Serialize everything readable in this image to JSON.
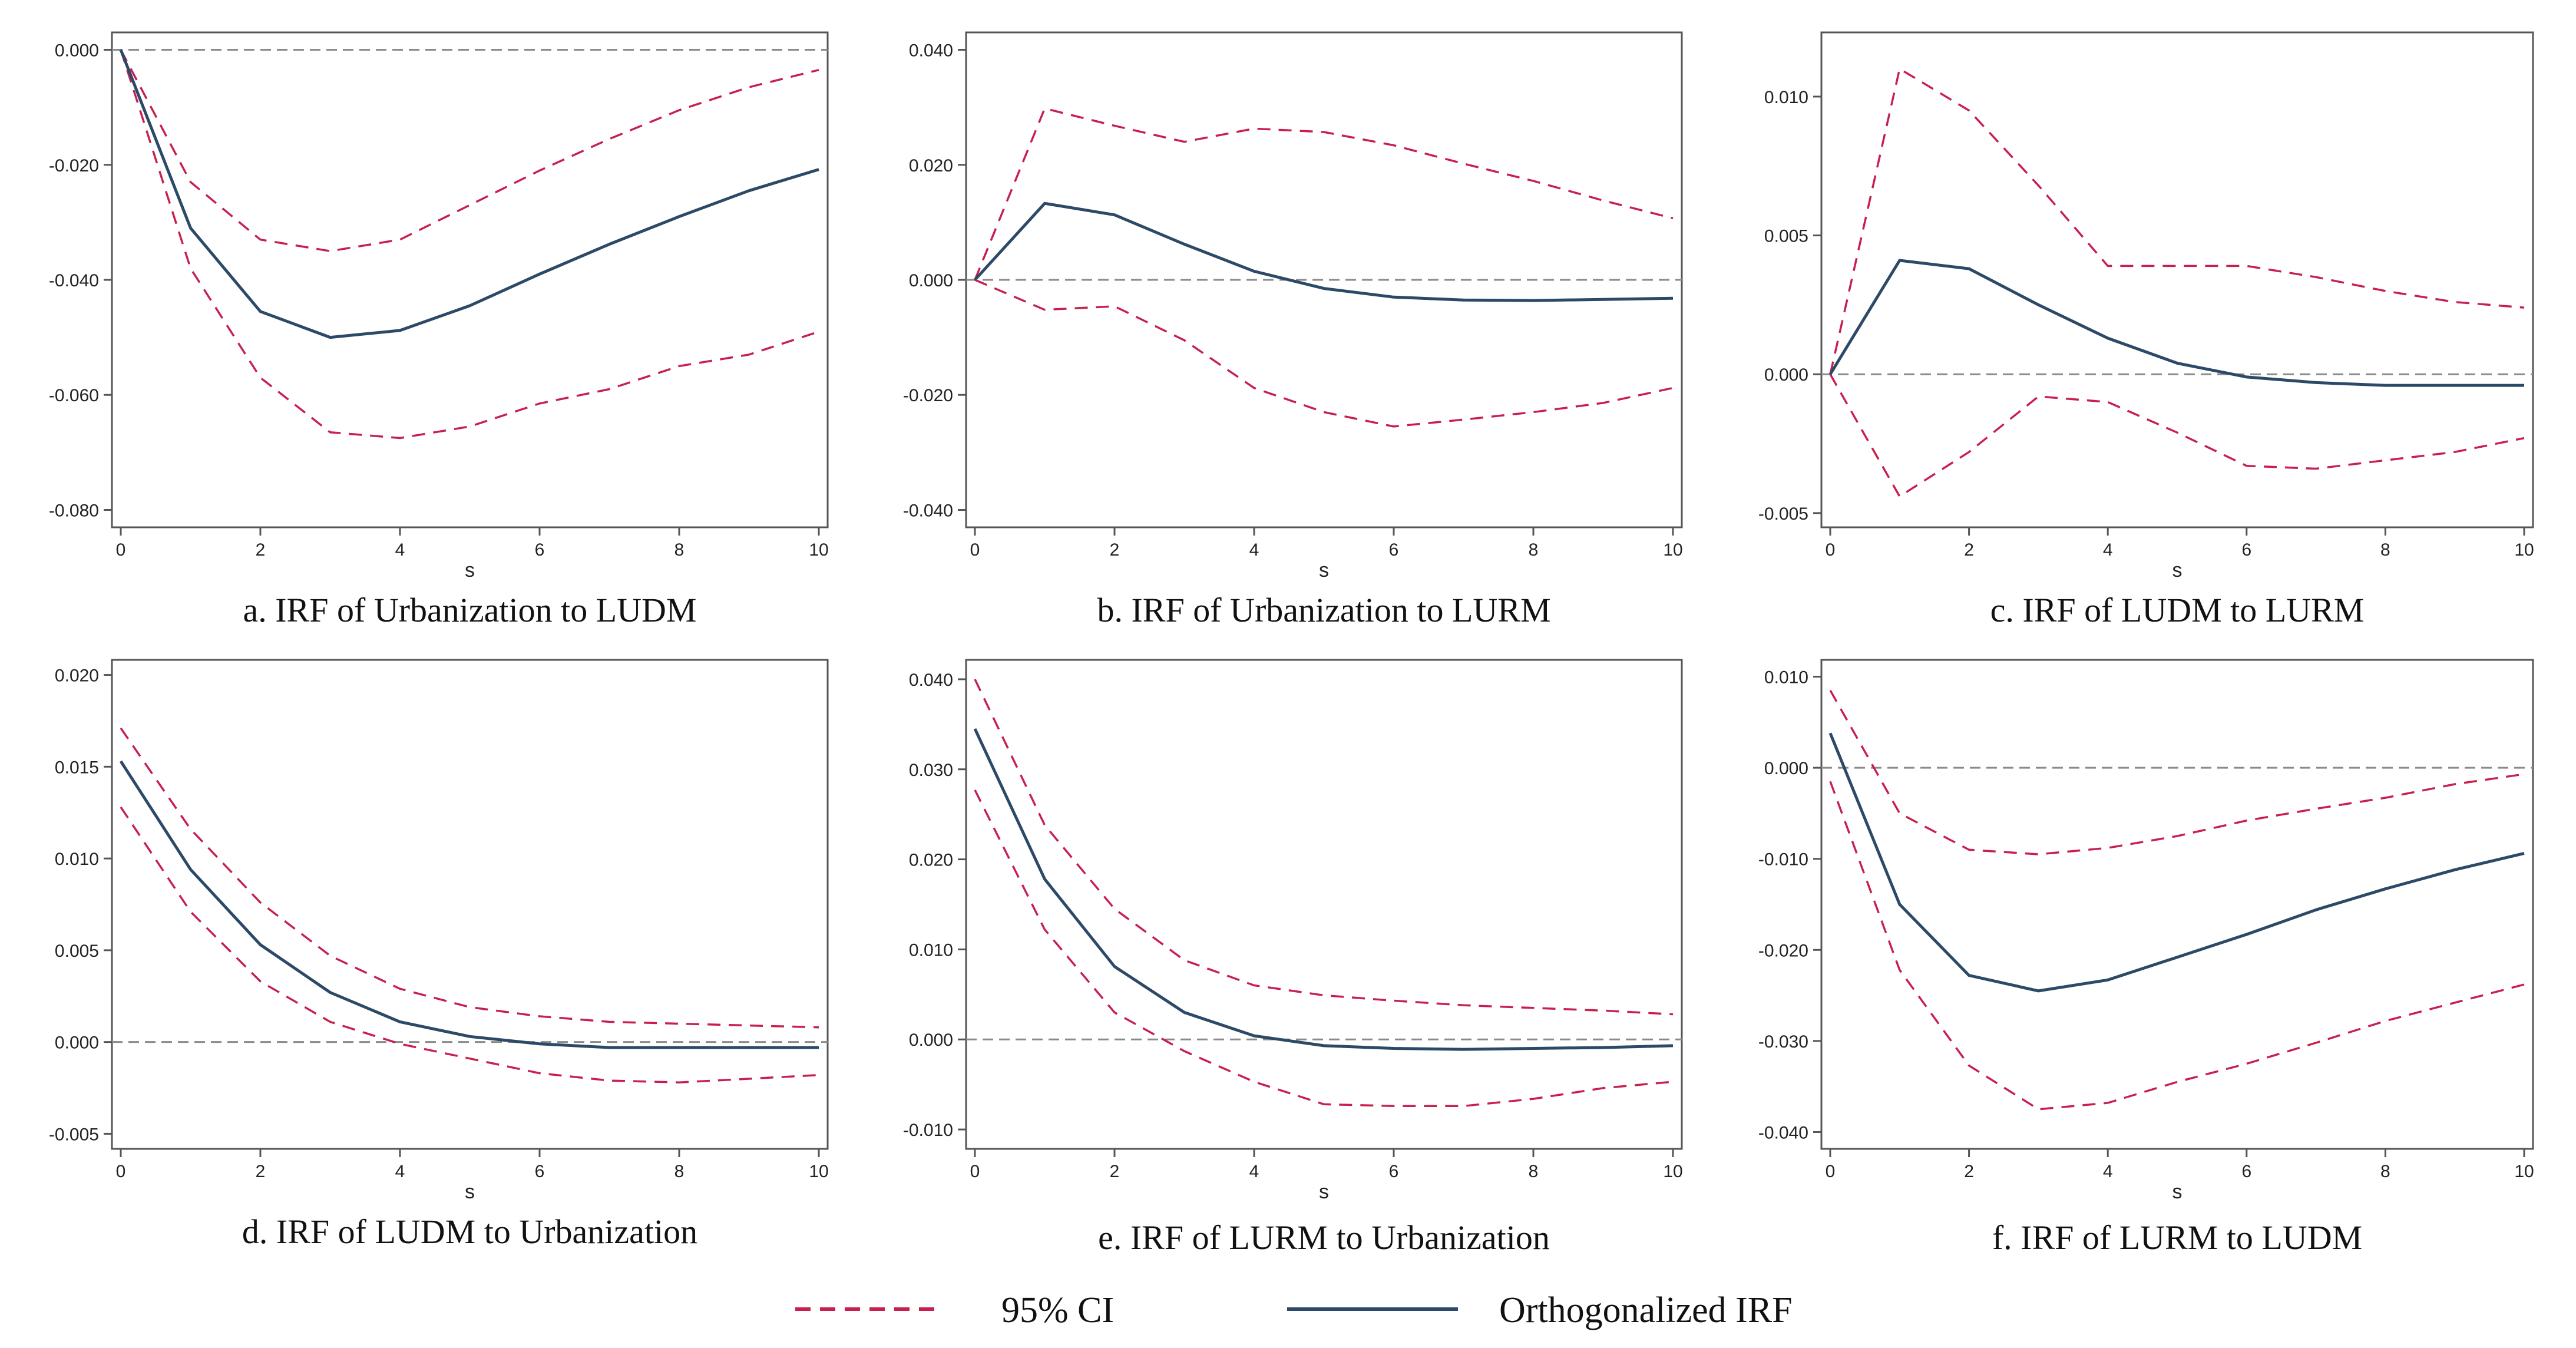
{
  "colors": {
    "ci": "#c8204e",
    "irf": "#2c4a68",
    "zero": "#8a8a8a",
    "frame": "#555555"
  },
  "legend": {
    "ci_label": "95% CI",
    "irf_label": "Orthogonalized IRF"
  },
  "chart_data": [
    {
      "type": "line",
      "title": "a. IRF of Urbanization to LUDM",
      "xlabel": "s",
      "x": [
        0,
        1,
        2,
        3,
        4,
        5,
        6,
        7,
        8,
        9,
        10
      ],
      "xticks": [
        0,
        2,
        4,
        6,
        8,
        10
      ],
      "ylim": [
        -0.082,
        0.002
      ],
      "yticks": [
        -0.08,
        -0.06,
        -0.04,
        -0.02,
        0.0
      ],
      "ytick_labels": [
        "-0.080",
        "-0.060",
        "-0.040",
        "-0.020",
        "0.000"
      ],
      "series": [
        {
          "name": "95% CI upper",
          "values": [
            0,
            -0.023,
            -0.033,
            -0.035,
            -0.033,
            -0.027,
            -0.021,
            -0.0155,
            -0.0105,
            -0.0065,
            -0.0035
          ]
        },
        {
          "name": "95% CI lower",
          "values": [
            0,
            -0.038,
            -0.057,
            -0.0665,
            -0.0675,
            -0.0655,
            -0.0615,
            -0.059,
            -0.055,
            -0.053,
            -0.049
          ]
        },
        {
          "name": "Orthogonalized IRF",
          "values": [
            0,
            -0.031,
            -0.0455,
            -0.05,
            -0.0488,
            -0.0445,
            -0.039,
            -0.0338,
            -0.029,
            -0.0245,
            -0.0208
          ]
        }
      ]
    },
    {
      "type": "line",
      "title": "b. IRF of Urbanization to LURM",
      "xlabel": "s",
      "x": [
        0,
        1,
        2,
        3,
        4,
        5,
        6,
        7,
        8,
        9,
        10
      ],
      "xticks": [
        0,
        2,
        4,
        6,
        8,
        10
      ],
      "ylim": [
        -0.042,
        0.042
      ],
      "yticks": [
        -0.04,
        -0.02,
        0.0,
        0.02,
        0.04
      ],
      "ytick_labels": [
        "-0.040",
        "-0.020",
        "0.000",
        "0.020",
        "0.040"
      ],
      "series": [
        {
          "name": "95% CI upper",
          "values": [
            0,
            0.0298,
            0.0268,
            0.024,
            0.0263,
            0.0257,
            0.0234,
            0.0202,
            0.0172,
            0.0138,
            0.0107
          ]
        },
        {
          "name": "95% CI lower",
          "values": [
            0,
            -0.0052,
            -0.0046,
            -0.0105,
            -0.0188,
            -0.023,
            -0.0255,
            -0.0243,
            -0.023,
            -0.0214,
            -0.0188
          ]
        },
        {
          "name": "Orthogonalized IRF",
          "values": [
            0,
            0.0133,
            0.0113,
            0.0062,
            0.0015,
            -0.0015,
            -0.003,
            -0.0035,
            -0.0036,
            -0.0034,
            -0.0032
          ]
        }
      ]
    },
    {
      "type": "line",
      "title": "c. IRF of LUDM to LURM",
      "xlabel": "s",
      "x": [
        0,
        1,
        2,
        3,
        4,
        5,
        6,
        7,
        8,
        9,
        10
      ],
      "xticks": [
        0,
        2,
        4,
        6,
        8,
        10
      ],
      "ylim": [
        -0.0053,
        0.0121
      ],
      "yticks": [
        -0.005,
        0.0,
        0.005,
        0.01
      ],
      "ytick_labels": [
        "-0.005",
        "0.000",
        "0.005",
        "0.010"
      ],
      "series": [
        {
          "name": "95% CI upper",
          "values": [
            0,
            0.011,
            0.0095,
            0.0068,
            0.0039,
            0.0039,
            0.0039,
            0.0035,
            0.003,
            0.0026,
            0.0024
          ]
        },
        {
          "name": "95% CI lower",
          "values": [
            0,
            -0.0044,
            -0.0028,
            -0.0008,
            -0.001,
            -0.0021,
            -0.0033,
            -0.0034,
            -0.0031,
            -0.0028,
            -0.0023
          ]
        },
        {
          "name": "Orthogonalized IRF",
          "values": [
            0,
            0.0041,
            0.0038,
            0.0025,
            0.0013,
            0.0004,
            -0.0001,
            -0.0003,
            -0.0004,
            -0.0004,
            -0.0004
          ]
        }
      ]
    },
    {
      "type": "line",
      "title": "d. IRF of LUDM to Urbanization",
      "xlabel": "s",
      "x": [
        0,
        1,
        2,
        3,
        4,
        5,
        6,
        7,
        8,
        9,
        10
      ],
      "xticks": [
        0,
        2,
        4,
        6,
        8,
        10
      ],
      "ylim": [
        -0.0055,
        0.0205
      ],
      "yticks": [
        -0.005,
        0.0,
        0.005,
        0.01,
        0.015,
        0.02
      ],
      "ytick_labels": [
        "-0.005",
        "0.000",
        "0.005",
        "0.010",
        "0.015",
        "0.020"
      ],
      "series": [
        {
          "name": "95% CI upper",
          "values": [
            0.0171,
            0.0116,
            0.0076,
            0.0047,
            0.0029,
            0.0019,
            0.0014,
            0.0011,
            0.001,
            0.0009,
            0.0008
          ]
        },
        {
          "name": "95% CI lower",
          "values": [
            0.0128,
            0.0071,
            0.0033,
            0.0011,
            -0.0001,
            -0.0009,
            -0.0017,
            -0.0021,
            -0.0022,
            -0.002,
            -0.0018
          ]
        },
        {
          "name": "Orthogonalized IRF",
          "values": [
            0.0153,
            0.0094,
            0.0053,
            0.0027,
            0.0011,
            0.0003,
            -0.0001,
            -0.0003,
            -0.0003,
            -0.0003,
            -0.0003
          ]
        }
      ]
    },
    {
      "type": "line",
      "title": "e. IRF of LURM to Urbanization",
      "xlabel": "s",
      "x": [
        0,
        1,
        2,
        3,
        4,
        5,
        6,
        7,
        8,
        9,
        10
      ],
      "xticks": [
        0,
        2,
        4,
        6,
        8,
        10
      ],
      "ylim": [
        -0.0115,
        0.0415
      ],
      "yticks": [
        -0.01,
        0.0,
        0.01,
        0.02,
        0.03,
        0.04
      ],
      "ytick_labels": [
        "-0.010",
        "0.000",
        "0.010",
        "0.020",
        "0.030",
        "0.040"
      ],
      "series": [
        {
          "name": "95% CI upper",
          "values": [
            0.04,
            0.0238,
            0.0145,
            0.0088,
            0.006,
            0.0049,
            0.0043,
            0.0038,
            0.0035,
            0.0032,
            0.0028
          ]
        },
        {
          "name": "95% CI lower",
          "values": [
            0.0277,
            0.0122,
            0.003,
            -0.0013,
            -0.0047,
            -0.0072,
            -0.0074,
            -0.0074,
            -0.0066,
            -0.0054,
            -0.0047
          ]
        },
        {
          "name": "Orthogonalized IRF",
          "values": [
            0.0345,
            0.0178,
            0.0081,
            0.003,
            0.0004,
            -0.0007,
            -0.001,
            -0.0011,
            -0.001,
            -0.0009,
            -0.0007
          ]
        }
      ]
    },
    {
      "type": "line",
      "title": "f. IRF of LURM to LUDM",
      "xlabel": "s",
      "x": [
        0,
        1,
        2,
        3,
        4,
        5,
        6,
        7,
        8,
        9,
        10
      ],
      "xticks": [
        0,
        2,
        4,
        6,
        8,
        10
      ],
      "ylim": [
        -0.0412,
        0.0112
      ],
      "yticks": [
        -0.04,
        -0.03,
        -0.02,
        -0.01,
        0.0,
        0.01
      ],
      "ytick_labels": [
        "-0.040",
        "-0.030",
        "-0.020",
        "-0.010",
        "0.000",
        "0.010"
      ],
      "series": [
        {
          "name": "95% CI upper",
          "values": [
            0.0085,
            -0.005,
            -0.009,
            -0.0095,
            -0.0088,
            -0.0075,
            -0.0058,
            -0.0045,
            -0.0033,
            -0.0018,
            -0.0007
          ]
        },
        {
          "name": "95% CI lower",
          "values": [
            -0.0015,
            -0.0222,
            -0.0327,
            -0.0375,
            -0.0368,
            -0.0345,
            -0.0325,
            -0.0302,
            -0.0278,
            -0.0258,
            -0.0238
          ]
        },
        {
          "name": "Orthogonalized IRF",
          "values": [
            0.0038,
            -0.015,
            -0.0228,
            -0.0245,
            -0.0233,
            -0.0208,
            -0.0183,
            -0.0156,
            -0.0133,
            -0.0112,
            -0.0094
          ]
        }
      ]
    }
  ]
}
